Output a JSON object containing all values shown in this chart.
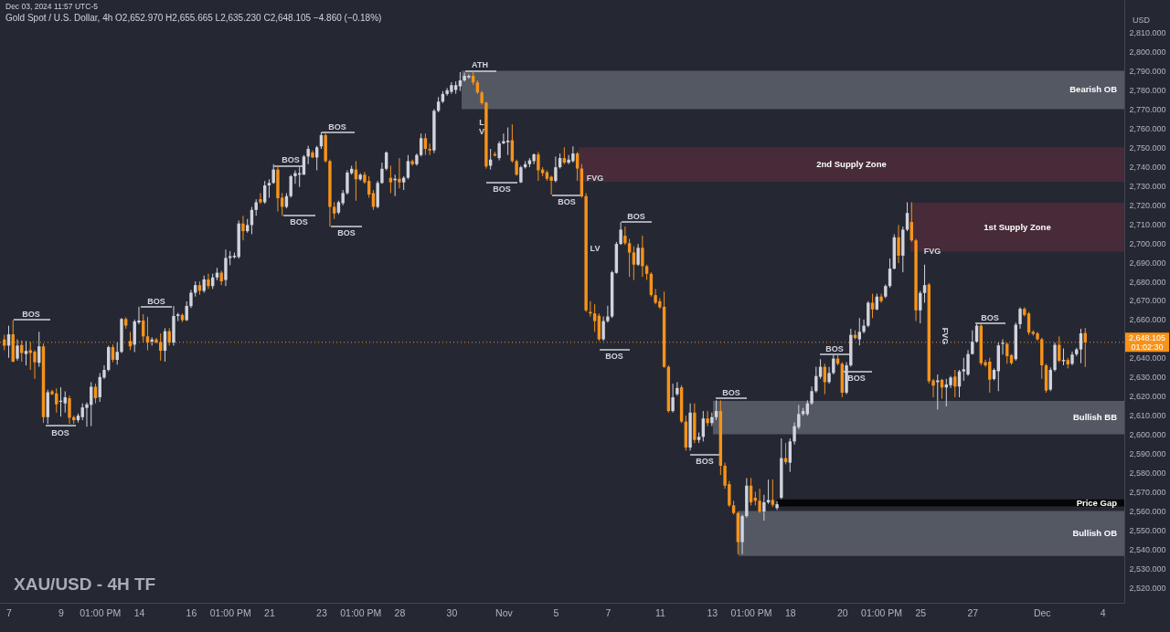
{
  "chart_data": {
    "type": "candlestick",
    "title": "XAU/USD - 4H TF",
    "subtitle": "Gold Spot / U.S. Dollar, 4h  O2,652.970 H2,655.665 L2,635.230 C2,648.105 −4.860 (−0.18%)",
    "ylabel": "USD",
    "categories": [
      null,
      "7",
      null,
      null,
      null,
      null,
      null,
      null,
      null,
      null,
      null,
      null,
      null,
      "9",
      null,
      null,
      null,
      null,
      null,
      null,
      null,
      null,
      "01:00 PM",
      null,
      null,
      null,
      null,
      null,
      null,
      null,
      null,
      "14",
      null,
      null,
      null,
      null,
      null,
      null,
      null,
      null,
      null,
      null,
      null,
      "16",
      null,
      null,
      null,
      null,
      null,
      null,
      null,
      null,
      "01:00 PM",
      null,
      null,
      null,
      null,
      null,
      null,
      null,
      null,
      "21",
      null,
      null,
      null,
      null,
      null,
      null,
      null,
      null,
      null,
      null,
      null,
      "23",
      null,
      null,
      null,
      null,
      null,
      null,
      null,
      null,
      "01:00 PM",
      null,
      null,
      null,
      null,
      null,
      null,
      null,
      null,
      "28",
      null,
      null,
      null,
      null,
      null,
      null,
      null,
      null,
      null,
      null,
      null,
      "30",
      null,
      null,
      null,
      null,
      null,
      null,
      null,
      null,
      null,
      null,
      null,
      "Nov",
      null,
      null,
      null,
      null,
      null,
      null,
      null,
      null,
      null,
      null,
      null,
      "5",
      null,
      null,
      null,
      null,
      null,
      null,
      null,
      null,
      null,
      null,
      null,
      "7",
      null,
      null,
      null,
      null,
      null,
      null,
      null,
      null,
      null,
      null,
      null,
      "11",
      null,
      null,
      null,
      null,
      null,
      null,
      null,
      null,
      null,
      null,
      null,
      "13",
      null,
      null,
      null,
      null,
      null,
      null,
      null,
      null,
      "01:00 PM",
      null,
      null,
      null,
      null,
      null,
      null,
      null,
      null,
      "18",
      null,
      null,
      null,
      null,
      null,
      null,
      null,
      null,
      null,
      null,
      null,
      "20",
      null,
      null,
      null,
      null,
      null,
      null,
      null,
      null,
      "01:00 PM",
      null,
      null,
      null,
      null,
      null,
      null,
      null,
      null,
      "25",
      null,
      null,
      null,
      null,
      null,
      null,
      null,
      null,
      null,
      null,
      null,
      "27",
      null,
      null,
      null,
      null,
      null,
      null,
      null,
      null,
      null,
      null,
      null,
      null,
      null,
      null,
      null,
      "Dec",
      null,
      null,
      null,
      null,
      null,
      null,
      null,
      null,
      null,
      null,
      null,
      null,
      null,
      "4",
      null,
      null,
      null,
      null
    ],
    "ohlc": [
      [
        2649.6,
        2652.0,
        2644.0,
        2646.4
      ],
      [
        2646.4,
        2656.8,
        2640.0,
        2652.3
      ],
      [
        2652.3,
        2659.7,
        2637.7,
        2638.0
      ],
      [
        2639.6,
        2649.6,
        2638.5,
        2646.4
      ],
      [
        2646.7,
        2649.1,
        2638.0,
        2642.5
      ],
      [
        2642.0,
        2648.8,
        2636.0,
        2643.6
      ],
      [
        2644.0,
        2648.3,
        2633.7,
        2642.5
      ],
      [
        2643.2,
        2644.0,
        2629.0,
        2637.7
      ],
      [
        2637.4,
        2653.6,
        2635.3,
        2646.0
      ],
      [
        2646.0,
        2647.5,
        2606.0,
        2609.0
      ],
      [
        2609.0,
        2623.3,
        2605.5,
        2622.0
      ],
      [
        2622.5,
        2623.3,
        2620.5,
        2621.0
      ],
      [
        2621.4,
        2624.0,
        2611.4,
        2615.7
      ],
      [
        2617.0,
        2624.6,
        2609.3,
        2617.6
      ],
      [
        2616.2,
        2622.5,
        2611.4,
        2619.4
      ],
      [
        2618.9,
        2620.2,
        2605.5,
        2608.7
      ],
      [
        2609.0,
        2609.8,
        2605.5,
        2607.4
      ],
      [
        2607.4,
        2610.9,
        2606.2,
        2609.8
      ],
      [
        2609.0,
        2616.2,
        2607.4,
        2614.1
      ],
      [
        2613.8,
        2616.7,
        2604.0,
        2615.7
      ],
      [
        2615.4,
        2627.3,
        2604.3,
        2624.9
      ],
      [
        2624.9,
        2626.5,
        2616.2,
        2618.9
      ],
      [
        2619.4,
        2632.1,
        2617.0,
        2630.0
      ],
      [
        2629.7,
        2636.1,
        2628.9,
        2633.7
      ],
      [
        2633.7,
        2646.4,
        2632.9,
        2645.6
      ],
      [
        2645.6,
        2646.9,
        2637.7,
        2639.0
      ],
      [
        2639.0,
        2648.0,
        2636.4,
        2643.1
      ],
      [
        2643.1,
        2660.8,
        2642.5,
        2660.3
      ],
      [
        2660.3,
        2661.2,
        2655.2,
        2656.8
      ],
      [
        2648.8,
        2653.6,
        2644.0,
        2646.0
      ],
      [
        2646.9,
        2660.0,
        2643.0,
        2659.0
      ],
      [
        2658.5,
        2666.7,
        2657.5,
        2659.5
      ],
      [
        2659.5,
        2662.8,
        2648.0,
        2651.2
      ],
      [
        2651.2,
        2661.5,
        2644.0,
        2648.0
      ],
      [
        2648.5,
        2650.7,
        2646.4,
        2649.6
      ],
      [
        2649.6,
        2650.4,
        2647.5,
        2648.0
      ],
      [
        2648.3,
        2652.8,
        2638.5,
        2643.7
      ],
      [
        2643.7,
        2655.5,
        2638.0,
        2653.9
      ],
      [
        2653.9,
        2655.5,
        2646.4,
        2648.0
      ],
      [
        2648.0,
        2667.1,
        2646.4,
        2661.9
      ],
      [
        2661.9,
        2663.5,
        2659.2,
        2662.7
      ],
      [
        2662.4,
        2663.2,
        2658.7,
        2659.7
      ],
      [
        2659.7,
        2669.5,
        2659.2,
        2667.1
      ],
      [
        2667.0,
        2675.5,
        2666.0,
        2674.0
      ],
      [
        2674.0,
        2680.0,
        2672.0,
        2678.0
      ],
      [
        2678.0,
        2680.0,
        2673.0,
        2675.0
      ],
      [
        2675.0,
        2683.0,
        2674.0,
        2681.0
      ],
      [
        2681.0,
        2684.0,
        2676.0,
        2677.5
      ],
      [
        2677.5,
        2684.0,
        2676.0,
        2682.0
      ],
      [
        2682.0,
        2687.0,
        2680.5,
        2684.5
      ],
      [
        2684.5,
        2685.5,
        2678.0,
        2680.0
      ],
      [
        2680.7,
        2696.6,
        2677.5,
        2692.2
      ],
      [
        2692.2,
        2695.8,
        2688.4,
        2693.1
      ],
      [
        2692.6,
        2695.0,
        2691.9,
        2693.4
      ],
      [
        2692.7,
        2711.8,
        2691.9,
        2710.2
      ],
      [
        2710.2,
        2714.2,
        2701.4,
        2706.2
      ],
      [
        2706.2,
        2712.6,
        2705.4,
        2709.4
      ],
      [
        2709.4,
        2718.9,
        2704.6,
        2717.3
      ],
      [
        2717.3,
        2722.9,
        2714.2,
        2721.3
      ],
      [
        2722.9,
        2726.1,
        2720.5,
        2721.3
      ],
      [
        2721.3,
        2732.5,
        2720.5,
        2730.1
      ],
      [
        2730.1,
        2733.3,
        2723.7,
        2731.4
      ],
      [
        2731.4,
        2741.2,
        2730.9,
        2738.4
      ],
      [
        2738.4,
        2740.4,
        2716.5,
        2723.4
      ],
      [
        2723.7,
        2726.1,
        2714.2,
        2718.9
      ],
      [
        2718.9,
        2726.1,
        2718.1,
        2724.5
      ],
      [
        2724.5,
        2735.7,
        2723.7,
        2734.9
      ],
      [
        2734.9,
        2738.0,
        2730.9,
        2736.5
      ],
      [
        2735.7,
        2739.6,
        2729.3,
        2736.5
      ],
      [
        2735.7,
        2746.0,
        2735.7,
        2745.2
      ],
      [
        2745.2,
        2750.8,
        2741.2,
        2749.2
      ],
      [
        2747.3,
        2748.4,
        2744.4,
        2744.7
      ],
      [
        2744.7,
        2750.8,
        2738.0,
        2750.0
      ],
      [
        2750.5,
        2758.0,
        2749.2,
        2756.4
      ],
      [
        2756.4,
        2758.0,
        2742.0,
        2742.8
      ],
      [
        2742.8,
        2743.6,
        2708.6,
        2718.9
      ],
      [
        2718.9,
        2721.3,
        2712.6,
        2715.4
      ],
      [
        2715.9,
        2722.1,
        2715.0,
        2721.3
      ],
      [
        2720.8,
        2727.7,
        2719.7,
        2726.1
      ],
      [
        2726.1,
        2738.0,
        2725.3,
        2736.8
      ],
      [
        2736.5,
        2740.4,
        2735.7,
        2738.8
      ],
      [
        2738.4,
        2742.8,
        2722.1,
        2733.3
      ],
      [
        2733.3,
        2736.5,
        2732.5,
        2735.7
      ],
      [
        2735.7,
        2737.2,
        2730.9,
        2731.7
      ],
      [
        2732.5,
        2734.9,
        2723.7,
        2725.3
      ],
      [
        2726.1,
        2727.7,
        2717.3,
        2718.9
      ],
      [
        2718.9,
        2732.5,
        2718.1,
        2731.4
      ],
      [
        2731.4,
        2742.0,
        2730.9,
        2738.8
      ],
      [
        2738.8,
        2747.9,
        2738.0,
        2747.3
      ],
      [
        2734.1,
        2740.4,
        2726.1,
        2731.7
      ],
      [
        2732.8,
        2735.7,
        2724.5,
        2733.6
      ],
      [
        2733.6,
        2744.4,
        2728.5,
        2731.7
      ],
      [
        2731.7,
        2734.9,
        2727.7,
        2734.1
      ],
      [
        2734.1,
        2746.0,
        2733.3,
        2742.8
      ],
      [
        2742.8,
        2743.6,
        2740.4,
        2741.2
      ],
      [
        2741.2,
        2746.8,
        2740.4,
        2746.0
      ],
      [
        2746.0,
        2757.2,
        2745.2,
        2754.8
      ],
      [
        2754.8,
        2757.2,
        2746.0,
        2749.2
      ],
      [
        2749.2,
        2752.0,
        2746.0,
        2748.4
      ],
      [
        2748.4,
        2770.0,
        2747.0,
        2769.1
      ],
      [
        2769.1,
        2776.3,
        2768.3,
        2773.9
      ],
      [
        2773.9,
        2779.4,
        2773.1,
        2777.9
      ],
      [
        2777.9,
        2781.0,
        2777.0,
        2779.8
      ],
      [
        2779.0,
        2784.0,
        2778.0,
        2782.5
      ],
      [
        2780.0,
        2784.5,
        2778.0,
        2782.5
      ],
      [
        2781.9,
        2789.3,
        2779.5,
        2785.0
      ],
      [
        2785.0,
        2789.0,
        2784.3,
        2787.4
      ],
      [
        2786.6,
        2788.2,
        2785.8,
        2787.4
      ],
      [
        2787.4,
        2789.8,
        2782.7,
        2783.9
      ],
      [
        2783.9,
        2785.0,
        2777.9,
        2778.7
      ],
      [
        2778.7,
        2779.5,
        2772.3,
        2773.1
      ],
      [
        2773.4,
        2773.9,
        2738.9,
        2740.0
      ],
      [
        2740.4,
        2749.2,
        2738.4,
        2743.6
      ],
      [
        2746.5,
        2747.6,
        2745.2,
        2745.7
      ],
      [
        2744.4,
        2753.2,
        2743.2,
        2752.1
      ],
      [
        2752.1,
        2757.2,
        2751.6,
        2753.2
      ],
      [
        2752.7,
        2760.4,
        2746.0,
        2753.5
      ],
      [
        2753.7,
        2762.0,
        2742.0,
        2742.8
      ],
      [
        2742.8,
        2743.6,
        2735.2,
        2735.7
      ],
      [
        2731.7,
        2740.4,
        2731.4,
        2739.6
      ],
      [
        2739.6,
        2742.8,
        2738.9,
        2741.2
      ],
      [
        2741.2,
        2744.4,
        2739.6,
        2743.2
      ],
      [
        2742.8,
        2746.8,
        2741.2,
        2746.3
      ],
      [
        2746.3,
        2747.6,
        2732.5,
        2738.0
      ],
      [
        2738.4,
        2739.6,
        2734.9,
        2736.5
      ],
      [
        2737.0,
        2738.0,
        2732.5,
        2733.6
      ],
      [
        2734.6,
        2735.2,
        2725.3,
        2732.5
      ],
      [
        2732.5,
        2745.2,
        2731.7,
        2739.6
      ],
      [
        2739.6,
        2746.8,
        2738.9,
        2744.4
      ],
      [
        2744.4,
        2750.0,
        2741.2,
        2742.0
      ],
      [
        2742.0,
        2746.0,
        2741.2,
        2743.6
      ],
      [
        2742.8,
        2750.5,
        2742.0,
        2746.8
      ],
      [
        2746.8,
        2747.6,
        2732.5,
        2738.9
      ],
      [
        2738.9,
        2741.2,
        2723.7,
        2724.5
      ],
      [
        2724.5,
        2726.1,
        2664.0,
        2664.8
      ],
      [
        2664.0,
        2669.6,
        2661.6,
        2663.2
      ],
      [
        2663.2,
        2668.0,
        2653.6,
        2659.2
      ],
      [
        2662.0,
        2663.2,
        2648.9,
        2649.7
      ],
      [
        2649.7,
        2661.6,
        2648.9,
        2659.2
      ],
      [
        2659.2,
        2667.2,
        2658.4,
        2661.6
      ],
      [
        2661.6,
        2685.5,
        2660.8,
        2684.7
      ],
      [
        2684.4,
        2700.6,
        2684.0,
        2699.5
      ],
      [
        2699.5,
        2711.0,
        2699.0,
        2707.0
      ],
      [
        2703.8,
        2708.6,
        2699.0,
        2699.9
      ],
      [
        2699.9,
        2702.2,
        2682.3,
        2695.0
      ],
      [
        2695.1,
        2698.3,
        2680.7,
        2688.7
      ],
      [
        2688.7,
        2699.5,
        2688.0,
        2697.5
      ],
      [
        2697.5,
        2703.8,
        2682.3,
        2687.9
      ],
      [
        2687.9,
        2688.7,
        2680.7,
        2683.9
      ],
      [
        2683.9,
        2684.7,
        2672.0,
        2672.8
      ],
      [
        2672.8,
        2676.0,
        2668.0,
        2668.8
      ],
      [
        2669.6,
        2671.2,
        2665.6,
        2666.4
      ],
      [
        2666.7,
        2674.6,
        2634.8,
        2635.3
      ],
      [
        2635.3,
        2636.1,
        2611.4,
        2612.2
      ],
      [
        2612.2,
        2626.5,
        2611.4,
        2619.4
      ],
      [
        2621.0,
        2627.3,
        2620.2,
        2624.2
      ],
      [
        2624.6,
        2625.7,
        2605.9,
        2606.7
      ],
      [
        2606.7,
        2609.8,
        2591.5,
        2593.1
      ],
      [
        2593.1,
        2616.2,
        2591.5,
        2611.4
      ],
      [
        2611.4,
        2616.2,
        2595.5,
        2597.1
      ],
      [
        2597.1,
        2601.0,
        2595.5,
        2598.7
      ],
      [
        2598.7,
        2612.2,
        2596.3,
        2608.3
      ],
      [
        2608.3,
        2612.2,
        2604.3,
        2605.9
      ],
      [
        2605.9,
        2611.4,
        2604.3,
        2609.0
      ],
      [
        2609.0,
        2617.8,
        2607.5,
        2612.2
      ],
      [
        2612.2,
        2617.8,
        2578.8,
        2583.6
      ],
      [
        2583.6,
        2585.2,
        2571.6,
        2573.2
      ],
      [
        2574.0,
        2575.6,
        2562.1,
        2562.9
      ],
      [
        2562.9,
        2565.3,
        2558.1,
        2558.9
      ],
      [
        2558.9,
        2559.7,
        2537.4,
        2543.7
      ],
      [
        2543.7,
        2558.1,
        2537.4,
        2557.3
      ],
      [
        2557.3,
        2577.2,
        2556.5,
        2573.2
      ],
      [
        2573.2,
        2577.2,
        2562.9,
        2564.5
      ],
      [
        2566.9,
        2570.0,
        2562.9,
        2565.3
      ],
      [
        2565.3,
        2571.6,
        2558.9,
        2559.7
      ],
      [
        2559.7,
        2568.4,
        2554.9,
        2564.5
      ],
      [
        2564.5,
        2576.4,
        2563.7,
        2565.7
      ],
      [
        2565.7,
        2576.4,
        2562.1,
        2563.2
      ],
      [
        2561.5,
        2565.0,
        2560.5,
        2563.5
      ],
      [
        2566.9,
        2597.9,
        2566.1,
        2587.6
      ],
      [
        2587.6,
        2595.5,
        2584.4,
        2585.5
      ],
      [
        2585.2,
        2597.9,
        2580.4,
        2596.3
      ],
      [
        2596.3,
        2606.2,
        2594.7,
        2604.3
      ],
      [
        2603.8,
        2615.4,
        2602.7,
        2610.6
      ],
      [
        2610.6,
        2613.8,
        2609.8,
        2612.2
      ],
      [
        2610.6,
        2617.8,
        2609.8,
        2616.2
      ],
      [
        2616.2,
        2625.0,
        2615.4,
        2622.6
      ],
      [
        2622.6,
        2635.3,
        2621.8,
        2630.5
      ],
      [
        2630.1,
        2639.3,
        2629.0,
        2635.3
      ],
      [
        2635.3,
        2636.9,
        2621.0,
        2627.3
      ],
      [
        2627.3,
        2635.3,
        2626.5,
        2632.1
      ],
      [
        2632.1,
        2641.7,
        2631.3,
        2639.6
      ],
      [
        2639.6,
        2641.7,
        2636.1,
        2636.9
      ],
      [
        2636.9,
        2637.7,
        2619.4,
        2621.8
      ],
      [
        2621.8,
        2637.7,
        2621.0,
        2636.1
      ],
      [
        2636.1,
        2655.2,
        2635.3,
        2652.0
      ],
      [
        2652.0,
        2654.4,
        2649.6,
        2650.4
      ],
      [
        2649.7,
        2660.8,
        2646.5,
        2653.6
      ],
      [
        2653.6,
        2660.0,
        2652.8,
        2656.8
      ],
      [
        2656.8,
        2669.6,
        2656.0,
        2668.8
      ],
      [
        2668.8,
        2673.5,
        2660.8,
        2665.3
      ],
      [
        2665.3,
        2673.5,
        2664.8,
        2672.0
      ],
      [
        2672.0,
        2673.5,
        2668.8,
        2669.6
      ],
      [
        2672.0,
        2678.3,
        2671.2,
        2677.5
      ],
      [
        2677.5,
        2691.9,
        2676.7,
        2686.6
      ],
      [
        2686.6,
        2704.6,
        2686.3,
        2703.0
      ],
      [
        2703.0,
        2709.4,
        2689.5,
        2693.4
      ],
      [
        2693.4,
        2708.6,
        2684.7,
        2707.0
      ],
      [
        2707.0,
        2721.3,
        2706.2,
        2715.7
      ],
      [
        2711.0,
        2721.3,
        2700.6,
        2701.4
      ],
      [
        2701.4,
        2702.2,
        2659.2,
        2664.8
      ],
      [
        2664.8,
        2675.0,
        2658.0,
        2673.9
      ],
      [
        2673.9,
        2688.7,
        2668.8,
        2678.0
      ],
      [
        2678.3,
        2679.1,
        2626.6,
        2627.8
      ],
      [
        2628.2,
        2629.0,
        2619.4,
        2625.5
      ],
      [
        2627.3,
        2631.3,
        2613.0,
        2628.2
      ],
      [
        2628.5,
        2629.0,
        2618.6,
        2624.5
      ],
      [
        2624.5,
        2629.0,
        2614.6,
        2626.1
      ],
      [
        2625.7,
        2630.5,
        2624.2,
        2629.7
      ],
      [
        2630.2,
        2633.7,
        2619.4,
        2625.0
      ],
      [
        2625.0,
        2633.7,
        2619.4,
        2632.9
      ],
      [
        2632.9,
        2640.0,
        2628.0,
        2634.0
      ],
      [
        2631.3,
        2644.0,
        2630.5,
        2642.0
      ],
      [
        2642.0,
        2654.4,
        2641.7,
        2648.4
      ],
      [
        2648.4,
        2657.6,
        2648.0,
        2656.8
      ],
      [
        2656.8,
        2657.6,
        2636.1,
        2637.2
      ],
      [
        2637.7,
        2639.0,
        2635.3,
        2636.1
      ],
      [
        2638.0,
        2640.0,
        2621.8,
        2628.6
      ],
      [
        2628.9,
        2634.5,
        2628.2,
        2633.7
      ],
      [
        2633.0,
        2648.0,
        2622.6,
        2646.5
      ],
      [
        2647.3,
        2649.7,
        2641.7,
        2647.9
      ],
      [
        2647.3,
        2648.0,
        2636.9,
        2640.9
      ],
      [
        2641.4,
        2642.0,
        2636.4,
        2637.2
      ],
      [
        2639.3,
        2658.4,
        2638.5,
        2657.3
      ],
      [
        2657.6,
        2666.4,
        2655.2,
        2665.6
      ],
      [
        2665.6,
        2666.4,
        2661.6,
        2662.4
      ],
      [
        2663.2,
        2664.0,
        2652.0,
        2653.2
      ],
      [
        2653.6,
        2654.4,
        2651.6,
        2652.5
      ],
      [
        2652.8,
        2653.6,
        2648.9,
        2649.7
      ],
      [
        2649.7,
        2650.5,
        2629.0,
        2636.1
      ],
      [
        2636.1,
        2636.9,
        2621.8,
        2622.9
      ],
      [
        2623.4,
        2635.0,
        2622.6,
        2633.7
      ],
      [
        2633.7,
        2648.0,
        2632.9,
        2646.8
      ],
      [
        2646.8,
        2651.2,
        2637.7,
        2638.5
      ],
      [
        2638.2,
        2644.9,
        2636.1,
        2638.9
      ],
      [
        2638.9,
        2640.0,
        2634.5,
        2636.6
      ],
      [
        2636.9,
        2643.3,
        2636.1,
        2641.7
      ],
      [
        2641.9,
        2645.2,
        2640.9,
        2644.4
      ],
      [
        2644.4,
        2655.2,
        2637.2,
        2652.8
      ],
      [
        2652.97,
        2655.665,
        2635.23,
        2648.105
      ],
      null,
      null,
      null,
      null,
      null,
      null,
      null,
      null
    ],
    "colors": [
      "#f7931a",
      "#d1d4dc",
      "#f7931a",
      "#d1d4dc",
      "#f7931a",
      "#d1d4dc",
      "#f7931a",
      "#f7931a",
      "#d1d4dc",
      "#f7931a",
      "#d1d4dc",
      "#f7931a",
      "#f7931a",
      "#d1d4dc",
      "#d1d4dc",
      "#f7931a",
      "#f7931a",
      "#d1d4dc",
      "#d1d4dc",
      "#d1d4dc",
      "#d1d4dc",
      "#f7931a",
      "#d1d4dc",
      "#d1d4dc",
      "#d1d4dc",
      "#f7931a",
      "#d1d4dc",
      "#d1d4dc",
      "#f7931a",
      "#f7931a",
      "#d1d4dc",
      "#d1d4dc",
      "#f7931a",
      "#f7931a",
      "#d1d4dc",
      "#f7931a",
      "#f7931a",
      "#d1d4dc",
      "#f7931a",
      "#d1d4dc",
      "#d1d4dc",
      "#f7931a",
      "#d1d4dc",
      "#d1d4dc",
      "#d1d4dc",
      "#f7931a",
      "#d1d4dc",
      "#f7931a",
      "#d1d4dc",
      "#d1d4dc",
      "#f7931a",
      "#d1d4dc",
      "#d1d4dc",
      "#d1d4dc",
      "#d1d4dc",
      "#f7931a",
      "#d1d4dc",
      "#d1d4dc",
      "#d1d4dc",
      "#f7931a",
      "#d1d4dc",
      "#d1d4dc",
      "#d1d4dc",
      "#f7931a",
      "#f7931a",
      "#d1d4dc",
      "#d1d4dc",
      "#d1d4dc",
      "#d1d4dc",
      "#d1d4dc",
      "#d1d4dc",
      "#f7931a",
      "#d1d4dc",
      "#d1d4dc",
      "#f7931a",
      "#f7931a",
      "#f7931a",
      "#d1d4dc",
      "#d1d4dc",
      "#d1d4dc",
      "#d1d4dc",
      "#f7931a",
      "#d1d4dc",
      "#f7931a",
      "#f7931a",
      "#f7931a",
      "#d1d4dc",
      "#d1d4dc",
      "#d1d4dc",
      "#f7931a",
      "#d1d4dc",
      "#f7931a",
      "#d1d4dc",
      "#d1d4dc",
      "#f7931a",
      "#d1d4dc",
      "#d1d4dc",
      "#f7931a",
      "#f7931a",
      "#d1d4dc",
      "#d1d4dc",
      "#d1d4dc",
      "#d1d4dc",
      "#d1d4dc",
      "#d1d4dc",
      "#d1d4dc",
      "#d1d4dc",
      "#d1d4dc",
      "#f7931a",
      "#f7931a",
      "#f7931a",
      "#f7931a",
      "#d1d4dc",
      "#f7931a",
      "#d1d4dc",
      "#d1d4dc",
      "#d1d4dc",
      "#f7931a",
      "#f7931a",
      "#d1d4dc",
      "#d1d4dc",
      "#d1d4dc",
      "#d1d4dc",
      "#f7931a",
      "#f7931a",
      "#f7931a",
      "#f7931a",
      "#d1d4dc",
      "#d1d4dc",
      "#f7931a",
      "#d1d4dc",
      "#d1d4dc",
      "#f7931a",
      "#f7931a",
      "#f7931a",
      "#f7931a",
      "#f7931a",
      "#f7931a",
      "#d1d4dc",
      "#d1d4dc",
      "#d1d4dc",
      "#d1d4dc",
      "#d1d4dc",
      "#f7931a",
      "#f7931a",
      "#f7931a",
      "#d1d4dc",
      "#f7931a",
      "#f7931a",
      "#f7931a",
      "#f7931a",
      "#f7931a",
      "#f7931a",
      "#f7931a",
      "#d1d4dc",
      "#d1d4dc",
      "#f7931a",
      "#f7931a",
      "#d1d4dc",
      "#f7931a",
      "#d1d4dc",
      "#d1d4dc",
      "#f7931a",
      "#d1d4dc",
      "#d1d4dc",
      "#f7931a",
      "#f7931a",
      "#f7931a",
      "#f7931a",
      "#f7931a",
      "#d1d4dc",
      "#d1d4dc",
      "#f7931a",
      "#f7931a",
      "#f7931a",
      "#d1d4dc",
      "#d1d4dc",
      "#f7931a",
      "#d1d4dc",
      "#d1d4dc",
      "#f7931a",
      "#d1d4dc",
      "#d1d4dc",
      "#d1d4dc",
      "#d1d4dc",
      "#d1d4dc",
      "#d1d4dc",
      "#d1d4dc",
      "#d1d4dc",
      "#f7931a",
      "#d1d4dc",
      "#d1d4dc",
      "#f7931a",
      "#f7931a",
      "#d1d4dc",
      "#d1d4dc",
      "#f7931a",
      "#d1d4dc",
      "#d1d4dc",
      "#d1d4dc",
      "#f7931a",
      "#d1d4dc",
      "#f7931a",
      "#d1d4dc",
      "#d1d4dc",
      "#d1d4dc",
      "#f7931a",
      "#d1d4dc",
      "#d1d4dc",
      "#f7931a",
      "#f7931a",
      "#d1d4dc",
      "#d1d4dc",
      "#f7931a",
      "#f7931a",
      "#d1d4dc",
      "#f7931a",
      "#d1d4dc",
      "#d1d4dc",
      "#f7931a",
      "#d1d4dc",
      "#d1d4dc",
      "#d1d4dc",
      "#d1d4dc",
      "#d1d4dc",
      "#f7931a",
      "#f7931a",
      "#f7931a",
      "#d1d4dc",
      "#d1d4dc",
      "#d1d4dc",
      "#f7931a",
      "#f7931a",
      "#d1d4dc",
      "#d1d4dc",
      "#f7931a",
      "#f7931a",
      "#f7931a",
      "#f7931a",
      "#f7931a",
      "#f7931a",
      "#d1d4dc",
      "#d1d4dc",
      "#f7931a",
      "#d1d4dc",
      "#f7931a",
      "#d1d4dc",
      "#d1d4dc",
      "#d1d4dc",
      "#f7931a",
      null,
      null,
      null,
      null,
      null,
      null,
      null,
      null
    ],
    "ylim": [
      2512,
      2827
    ],
    "yticks": [
      {
        "value": 2520,
        "label": "2,520.000"
      },
      {
        "value": 2530,
        "label": "2,530.000"
      },
      {
        "value": 2540,
        "label": "2,540.000"
      },
      {
        "value": 2550,
        "label": "2,550.000"
      },
      {
        "value": 2560,
        "label": "2,560.000"
      },
      {
        "value": 2570,
        "label": "2,570.000"
      },
      {
        "value": 2580,
        "label": "2,580.000"
      },
      {
        "value": 2590,
        "label": "2,590.000"
      },
      {
        "value": 2600,
        "label": "2,600.000"
      },
      {
        "value": 2610,
        "label": "2,610.000"
      },
      {
        "value": 2620,
        "label": "2,620.000"
      },
      {
        "value": 2630,
        "label": "2,630.000"
      },
      {
        "value": 2640,
        "label": "2,640.000"
      },
      {
        "value": 2660,
        "label": "2,660.000"
      },
      {
        "value": 2670,
        "label": "2,670.000"
      },
      {
        "value": 2680,
        "label": "2,680.000"
      },
      {
        "value": 2690,
        "label": "2,690.000"
      },
      {
        "value": 2700,
        "label": "2,700.000"
      },
      {
        "value": 2710,
        "label": "2,710.000"
      },
      {
        "value": 2720,
        "label": "2,720.000"
      },
      {
        "value": 2730,
        "label": "2,730.000"
      },
      {
        "value": 2740,
        "label": "2,740.000"
      },
      {
        "value": 2750,
        "label": "2,750.000"
      },
      {
        "value": 2760,
        "label": "2,760.000"
      },
      {
        "value": 2770,
        "label": "2,770.000"
      },
      {
        "value": 2780,
        "label": "2,780.000"
      },
      {
        "value": 2790,
        "label": "2,790.000"
      },
      {
        "value": 2800,
        "label": "2,800.000"
      },
      {
        "value": 2810,
        "label": "2,810.000"
      }
    ],
    "bands": [
      {
        "axis": "y",
        "from": 2770,
        "to": 2790,
        "label": "Bearish OB",
        "color": "#5d606b"
      },
      {
        "axis": "y",
        "from": 2732,
        "to": 2750,
        "label": "2nd Supply Zone",
        "color": "#4e2c3a"
      },
      {
        "axis": "y",
        "from": 2695.5,
        "to": 2721,
        "label": "1st Supply Zone",
        "color": "#4e2c3a"
      },
      {
        "axis": "y",
        "from": 2600,
        "to": 2617.5,
        "label": "Bullish BB",
        "color": "#5d606b"
      },
      {
        "axis": "y",
        "from": 2562.3,
        "to": 2566,
        "label": "Price Gap",
        "color": "#000000"
      },
      {
        "axis": "y",
        "from": 2536.5,
        "to": 2560,
        "label": "Bullish OB",
        "color": "#5d606b"
      }
    ],
    "ref_lines": [
      {
        "axis": "y",
        "value": 2648.105,
        "label": "2,648.105\n01:02:30",
        "color": "#f7931a",
        "line_style": "dotted"
      }
    ],
    "annotations": [
      "Dec 03, 2024 11:57 UTC-5",
      "BOS",
      "BOS",
      "BOS",
      "BOS",
      "BOS",
      "BOS",
      "BOS",
      "ATH",
      "LV",
      "BOS",
      "BOS",
      "FVG",
      "LV",
      "BOS",
      "BOS",
      "BOS",
      "BOS",
      "BOS",
      "BOS",
      "FVG",
      "FVG",
      "BOS"
    ]
  }
}
